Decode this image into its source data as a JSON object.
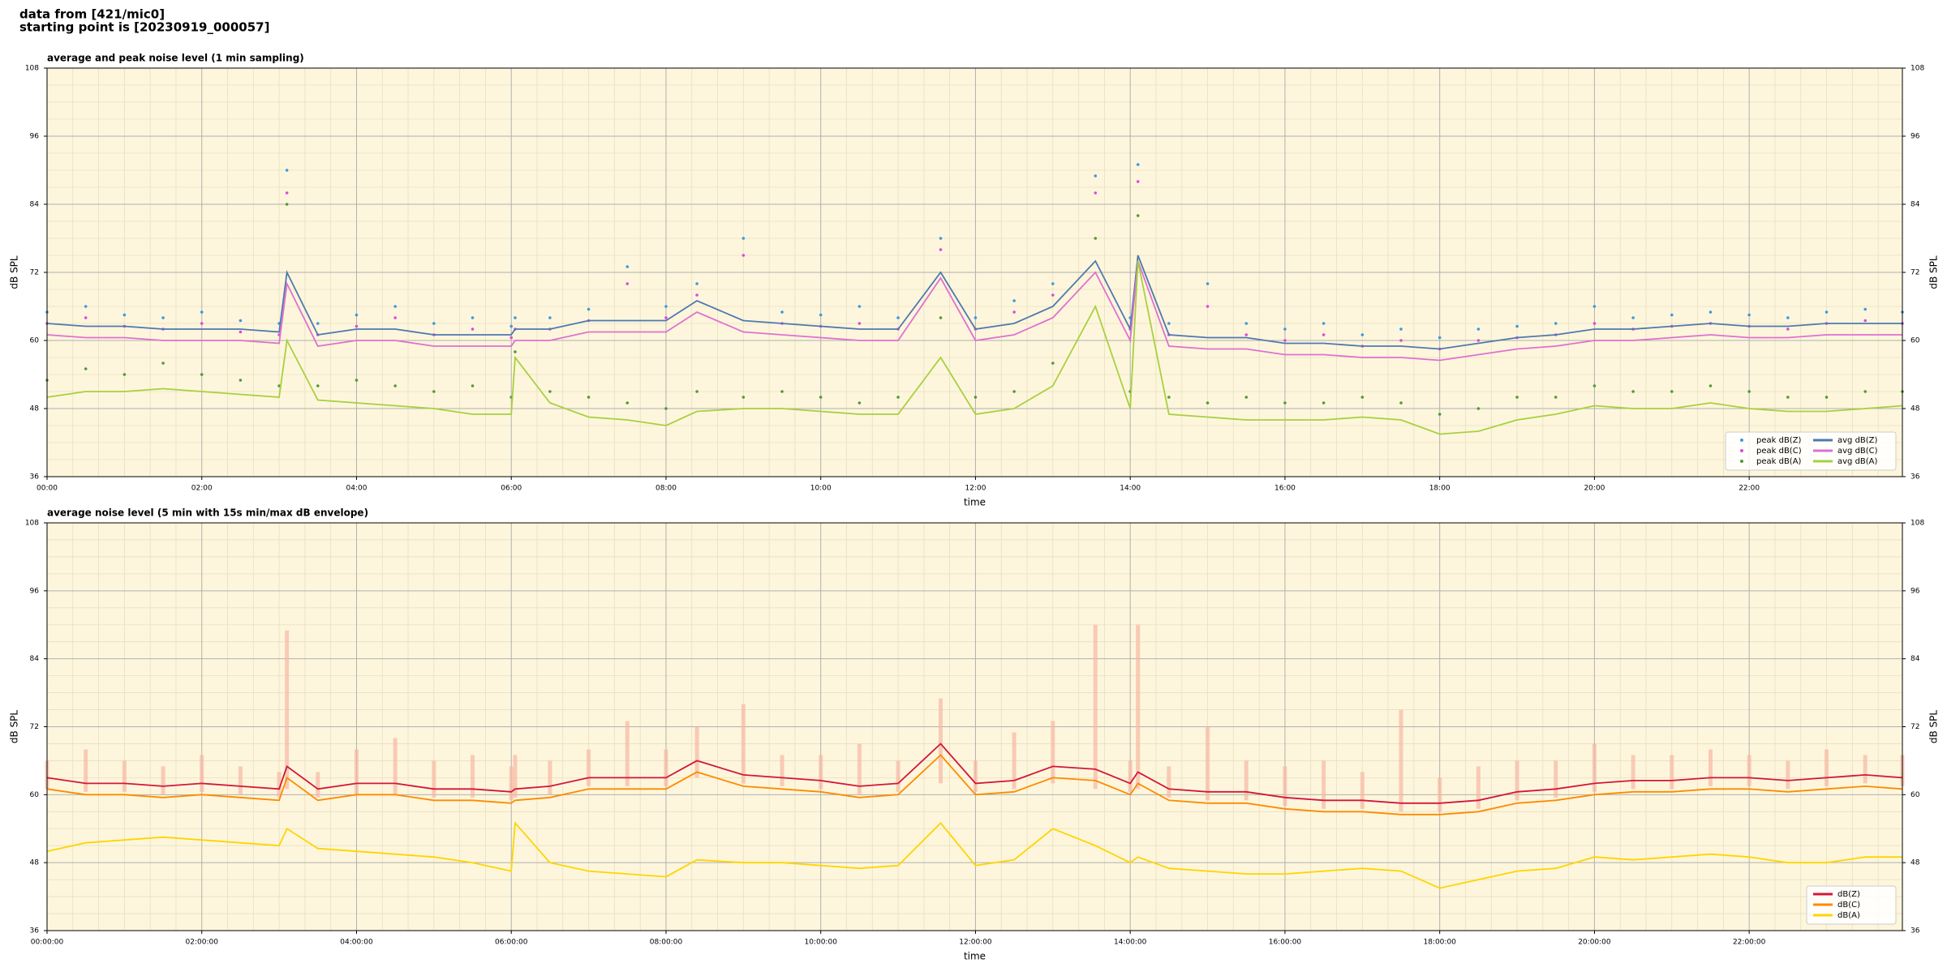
{
  "header": {
    "lines": [
      "data from [421/mic0]",
      "starting point is [20230919_000057]"
    ]
  },
  "chart_data": [
    {
      "type": "line",
      "title": "average and peak noise level (1 min sampling)",
      "xlabel": "time",
      "ylabel": "dB SPL",
      "background": "#fdf6dc",
      "grid": true,
      "minor_grid": true,
      "legend": "lower right",
      "legend_columns": 2,
      "xlim": [
        0,
        23.98
      ],
      "ylim": [
        36,
        108
      ],
      "yticks": [
        36,
        48,
        60,
        72,
        84,
        96,
        108
      ],
      "xticks": [
        {
          "value": 0,
          "label": "00:00"
        },
        {
          "value": 2,
          "label": "02:00"
        },
        {
          "value": 4,
          "label": "04:00"
        },
        {
          "value": 6,
          "label": "06:00"
        },
        {
          "value": 8,
          "label": "08:00"
        },
        {
          "value": 10,
          "label": "10:00"
        },
        {
          "value": 12,
          "label": "12:00"
        },
        {
          "value": 14,
          "label": "14:00"
        },
        {
          "value": 16,
          "label": "16:00"
        },
        {
          "value": 18,
          "label": "18:00"
        },
        {
          "value": 20,
          "label": "20:00"
        },
        {
          "value": 22,
          "label": "22:00"
        }
      ],
      "x": [
        0,
        0.5,
        1,
        1.5,
        2,
        2.5,
        3,
        3.1,
        3.5,
        4,
        4.5,
        5,
        5.5,
        6,
        6.05,
        6.5,
        7,
        7.5,
        8,
        8.4,
        9,
        9.5,
        10,
        10.5,
        11,
        11.55,
        12,
        12.5,
        13,
        13.55,
        14,
        14.1,
        14.5,
        15,
        15.5,
        16,
        16.5,
        17,
        17.5,
        18,
        18.5,
        19,
        19.5,
        20,
        20.5,
        21,
        21.5,
        22,
        22.5,
        23,
        23.5,
        23.98
      ],
      "series": [
        {
          "name": "peak dB(Z)",
          "style": "points",
          "color": "#3b9ad9",
          "values": [
            65,
            66,
            64.5,
            64,
            65,
            63.5,
            63,
            90,
            63,
            64.5,
            66,
            63,
            64,
            62.5,
            64,
            64,
            65.5,
            73,
            66,
            70,
            78,
            65,
            64.5,
            66,
            64,
            78,
            64,
            67,
            70,
            89,
            64,
            91,
            63,
            70,
            63,
            62,
            63,
            61,
            62,
            60.5,
            62,
            62.5,
            63,
            66,
            64,
            64.5,
            65,
            64.5,
            64,
            65,
            65.5,
            65
          ]
        },
        {
          "name": "peak dB(C)",
          "style": "points",
          "color": "#e048d8",
          "values": [
            63,
            64,
            62.5,
            62,
            63,
            61.5,
            61,
            86,
            61,
            62.5,
            64,
            61,
            62,
            60.5,
            62,
            62,
            63.5,
            70,
            64,
            68,
            75,
            63,
            62.5,
            63,
            62,
            76,
            62,
            65,
            68,
            86,
            62,
            88,
            61,
            66,
            61,
            60,
            61,
            59,
            60,
            58.5,
            60,
            60.5,
            61,
            63,
            62,
            62.5,
            63,
            62.5,
            62,
            63,
            63.5,
            63
          ]
        },
        {
          "name": "peak dB(A)",
          "style": "points",
          "color": "#4f9a3c",
          "values": [
            53,
            55,
            54,
            56,
            54,
            53,
            52,
            84,
            52,
            53,
            52,
            51,
            52,
            50,
            58,
            51,
            50,
            49,
            48,
            51,
            50,
            51,
            50,
            49,
            50,
            64,
            50,
            51,
            56,
            78,
            51,
            82,
            50,
            49,
            50,
            49,
            49,
            50,
            49,
            47,
            48,
            50,
            50,
            52,
            51,
            51,
            52,
            51,
            50,
            50,
            51,
            51
          ]
        },
        {
          "name": "avg dB(Z)",
          "style": "line",
          "color": "#4f78b0",
          "values": [
            63,
            62.5,
            62.5,
            62,
            62,
            62,
            61.5,
            72,
            61,
            62,
            62,
            61,
            61,
            61,
            62,
            62,
            63.5,
            63.5,
            63.5,
            67,
            63.5,
            63,
            62.5,
            62,
            62,
            72,
            62,
            63,
            66,
            74,
            62,
            75,
            61,
            60.5,
            60.5,
            59.5,
            59.5,
            59,
            59,
            58.5,
            59.5,
            60.5,
            61,
            62,
            62,
            62.5,
            63,
            62.5,
            62.5,
            63,
            63,
            63
          ]
        },
        {
          "name": "avg dB(C)",
          "style": "line",
          "color": "#e070d0",
          "values": [
            61,
            60.5,
            60.5,
            60,
            60,
            60,
            59.5,
            70,
            59,
            60,
            60,
            59,
            59,
            59,
            60,
            60,
            61.5,
            61.5,
            61.5,
            65,
            61.5,
            61,
            60.5,
            60,
            60,
            71,
            60,
            61,
            64,
            72,
            60,
            74,
            59,
            58.5,
            58.5,
            57.5,
            57.5,
            57,
            57,
            56.5,
            57.5,
            58.5,
            59,
            60,
            60,
            60.5,
            61,
            60.5,
            60.5,
            61,
            61,
            61
          ]
        },
        {
          "name": "avg dB(A)",
          "style": "line",
          "color": "#a8d040",
          "values": [
            50,
            51,
            51,
            51.5,
            51,
            50.5,
            50,
            60,
            49.5,
            49,
            48.5,
            48,
            47,
            47,
            57,
            49,
            46.5,
            46,
            45,
            47.5,
            48,
            48,
            47.5,
            47,
            47,
            57,
            47,
            48,
            52,
            66,
            48,
            74,
            47,
            46.5,
            46,
            46,
            46,
            46.5,
            46,
            43.5,
            44,
            46,
            47,
            48.5,
            48,
            48,
            49,
            48,
            47.5,
            47.5,
            48,
            48.5
          ]
        }
      ]
    },
    {
      "type": "line",
      "title": "average noise level (5 min with 15s min/max dB envelope)",
      "xlabel": "time",
      "ylabel": "dB SPL",
      "background": "#fdf6dc",
      "grid": true,
      "minor_grid": true,
      "legend": "lower right",
      "legend_columns": 1,
      "xlim": [
        0,
        23.98
      ],
      "ylim": [
        36,
        108
      ],
      "yticks": [
        36,
        48,
        60,
        72,
        84,
        96,
        108
      ],
      "xticks": [
        {
          "value": 0,
          "label": "00:00:00"
        },
        {
          "value": 2,
          "label": "02:00:00"
        },
        {
          "value": 4,
          "label": "04:00:00"
        },
        {
          "value": 6,
          "label": "06:00:00"
        },
        {
          "value": 8,
          "label": "08:00:00"
        },
        {
          "value": 10,
          "label": "10:00:00"
        },
        {
          "value": 12,
          "label": "12:00:00"
        },
        {
          "value": 14,
          "label": "14:00:00"
        },
        {
          "value": 16,
          "label": "16:00:00"
        },
        {
          "value": 18,
          "label": "18:00:00"
        },
        {
          "value": 20,
          "label": "20:00:00"
        },
        {
          "value": 22,
          "label": "22:00:00"
        }
      ],
      "x": [
        0,
        0.5,
        1,
        1.5,
        2,
        2.5,
        3,
        3.1,
        3.5,
        4,
        4.5,
        5,
        5.5,
        6,
        6.05,
        6.5,
        7,
        7.5,
        8,
        8.4,
        9,
        9.5,
        10,
        10.5,
        11,
        11.55,
        12,
        12.5,
        13,
        13.55,
        14,
        14.1,
        14.5,
        15,
        15.5,
        16,
        16.5,
        17,
        17.5,
        18,
        18.5,
        19,
        19.5,
        20,
        20.5,
        21,
        21.5,
        22,
        22.5,
        23,
        23.5,
        23.98
      ],
      "envelope": {
        "color": "#f6b8a4",
        "low": [
          61,
          60.5,
          60.5,
          60,
          60.5,
          60,
          59.5,
          61,
          59.5,
          60,
          60,
          59.5,
          59.5,
          59,
          59.5,
          60,
          61.5,
          61.5,
          61.5,
          63,
          62,
          61.5,
          61,
          60,
          60.5,
          62,
          60.5,
          61,
          62,
          61,
          60.5,
          61,
          59.5,
          59,
          59,
          58,
          57.5,
          57.5,
          57,
          57,
          57.5,
          59,
          59.5,
          60.5,
          61,
          61,
          61.5,
          61.5,
          61,
          61.5,
          62,
          61.5
        ],
        "high": [
          66,
          68,
          66,
          65,
          67,
          65,
          64,
          89,
          64,
          68,
          70,
          66,
          67,
          65,
          67,
          66,
          68,
          73,
          68,
          72,
          76,
          67,
          67,
          69,
          66,
          77,
          66,
          71,
          73,
          90,
          66,
          90,
          65,
          72,
          66,
          65,
          66,
          64,
          75,
          63,
          65,
          66,
          66,
          69,
          67,
          67,
          68,
          67,
          66,
          68,
          67,
          67
        ]
      },
      "series": [
        {
          "name": "dB(Z)",
          "style": "line",
          "color": "#d4163a",
          "values": [
            63,
            62,
            62,
            61.5,
            62,
            61.5,
            61,
            65,
            61,
            62,
            62,
            61,
            61,
            60.5,
            61,
            61.5,
            63,
            63,
            63,
            66,
            63.5,
            63,
            62.5,
            61.5,
            62,
            69,
            62,
            62.5,
            65,
            64.5,
            62,
            64,
            61,
            60.5,
            60.5,
            59.5,
            59,
            59,
            58.5,
            58.5,
            59,
            60.5,
            61,
            62,
            62.5,
            62.5,
            63,
            63,
            62.5,
            63,
            63.5,
            63
          ]
        },
        {
          "name": "dB(C)",
          "style": "line",
          "color": "#ff8a00",
          "values": [
            61,
            60,
            60,
            59.5,
            60,
            59.5,
            59,
            63,
            59,
            60,
            60,
            59,
            59,
            58.5,
            59,
            59.5,
            61,
            61,
            61,
            64,
            61.5,
            61,
            60.5,
            59.5,
            60,
            67,
            60,
            60.5,
            63,
            62.5,
            60,
            62,
            59,
            58.5,
            58.5,
            57.5,
            57,
            57,
            56.5,
            56.5,
            57,
            58.5,
            59,
            60,
            60.5,
            60.5,
            61,
            61,
            60.5,
            61,
            61.5,
            61
          ]
        },
        {
          "name": "dB(A)",
          "style": "line",
          "color": "#ffd400",
          "values": [
            50,
            51.5,
            52,
            52.5,
            52,
            51.5,
            51,
            54,
            50.5,
            50,
            49.5,
            49,
            48,
            46.5,
            55,
            48,
            46.5,
            46,
            45.5,
            48.5,
            48,
            48,
            47.5,
            47,
            47.5,
            55,
            47.5,
            48.5,
            54,
            51,
            48,
            49,
            47,
            46.5,
            46,
            46,
            46.5,
            47,
            46.5,
            43.5,
            45,
            46.5,
            47,
            49,
            48.5,
            49,
            49.5,
            49,
            48,
            48,
            49,
            49
          ]
        }
      ]
    }
  ]
}
